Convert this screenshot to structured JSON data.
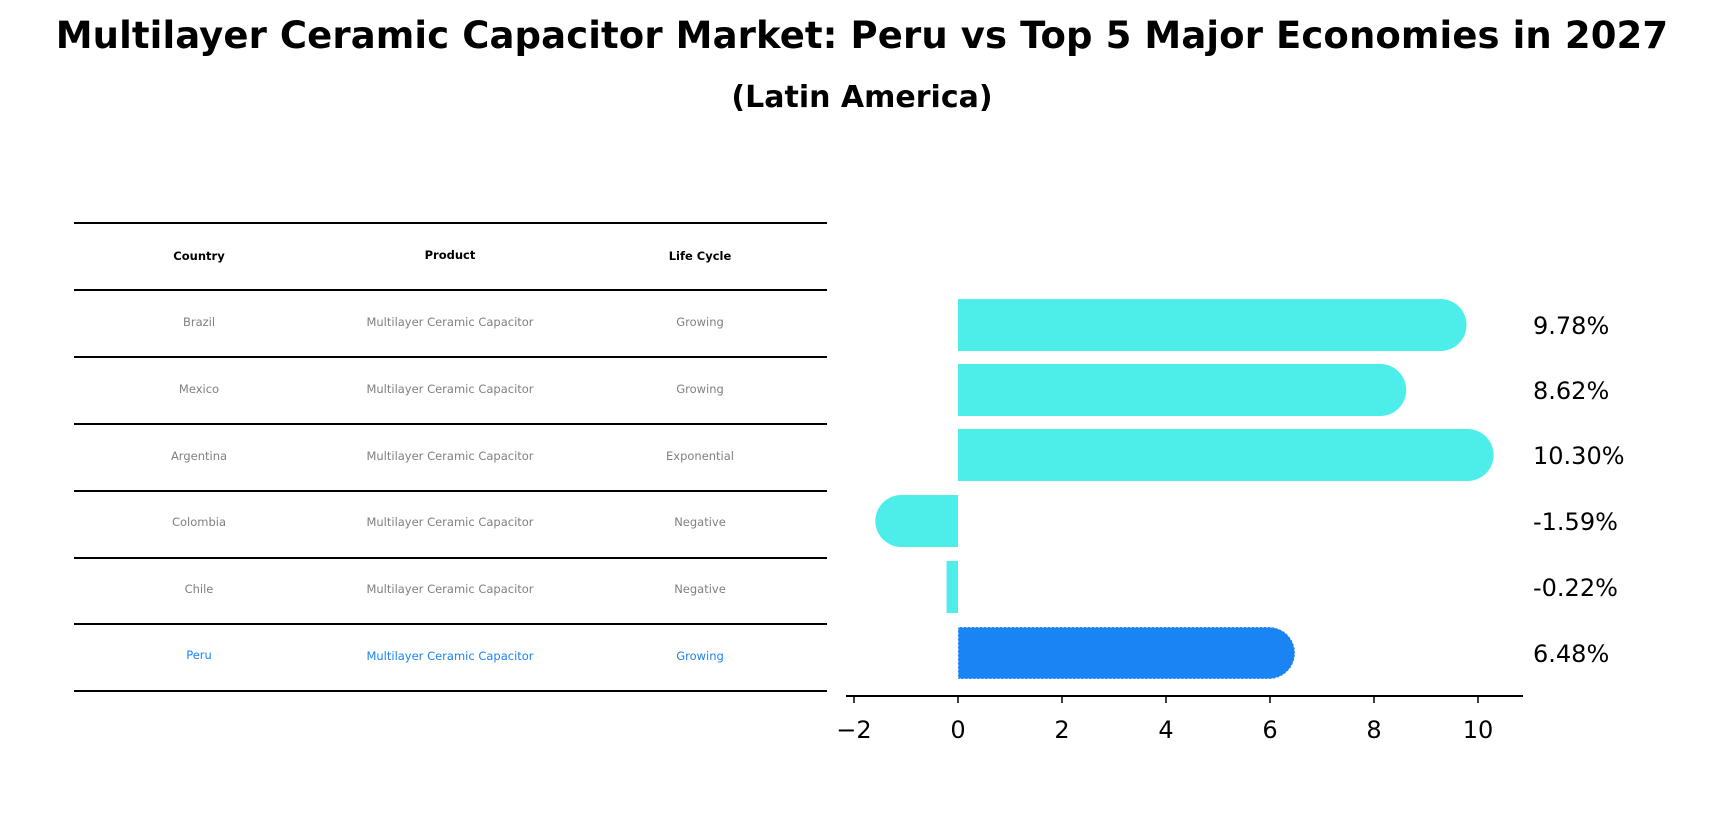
{
  "title": "Multilayer Ceramic Capacitor Market: Peru vs Top 5 Major Economies in 2027",
  "subtitle": "(Latin America)",
  "table": {
    "headers": [
      "Country",
      "Product",
      "Life Cycle"
    ],
    "rows": [
      {
        "country": "Brazil",
        "product": "Multilayer Ceramic Capacitor",
        "life_cycle": "Growing",
        "highlight": false
      },
      {
        "country": "Mexico",
        "product": "Multilayer Ceramic Capacitor",
        "life_cycle": "Growing",
        "highlight": false
      },
      {
        "country": "Argentina",
        "product": "Multilayer Ceramic Capacitor",
        "life_cycle": "Exponential",
        "highlight": false
      },
      {
        "country": "Colombia",
        "product": "Multilayer Ceramic Capacitor",
        "life_cycle": "Negative",
        "highlight": false
      },
      {
        "country": "Chile",
        "product": "Multilayer Ceramic Capacitor",
        "life_cycle": "Negative",
        "highlight": false
      },
      {
        "country": "Peru",
        "product": "Multilayer Ceramic Capacitor",
        "life_cycle": "Growing",
        "highlight": true
      }
    ]
  },
  "colors": {
    "bar_default": "#4deeea",
    "bar_highlight": "#1a84f5",
    "text_muted": "#808080",
    "text_highlight": "#1a84f5"
  },
  "chart_data": {
    "type": "bar",
    "orientation": "horizontal",
    "title": "Multilayer Ceramic Capacitor Market: Peru vs Top 5 Major Economies in 2027",
    "subtitle": "(Latin America)",
    "categories": [
      "Brazil",
      "Mexico",
      "Argentina",
      "Colombia",
      "Chile",
      "Peru"
    ],
    "values": [
      9.78,
      8.62,
      10.3,
      -1.59,
      -0.22,
      6.48
    ],
    "value_labels": [
      "9.78%",
      "8.62%",
      "10.30%",
      "-1.59%",
      "-0.22%",
      "6.48%"
    ],
    "highlight_category": "Peru",
    "xlabel": "",
    "ylabel": "",
    "xlim": [
      -2.15,
      10.85
    ],
    "xticks": [
      -2,
      0,
      2,
      4,
      6,
      8,
      10
    ],
    "xtick_labels": [
      "−2",
      "0",
      "2",
      "4",
      "6",
      "8",
      "10"
    ],
    "grid": false,
    "legend": null
  }
}
